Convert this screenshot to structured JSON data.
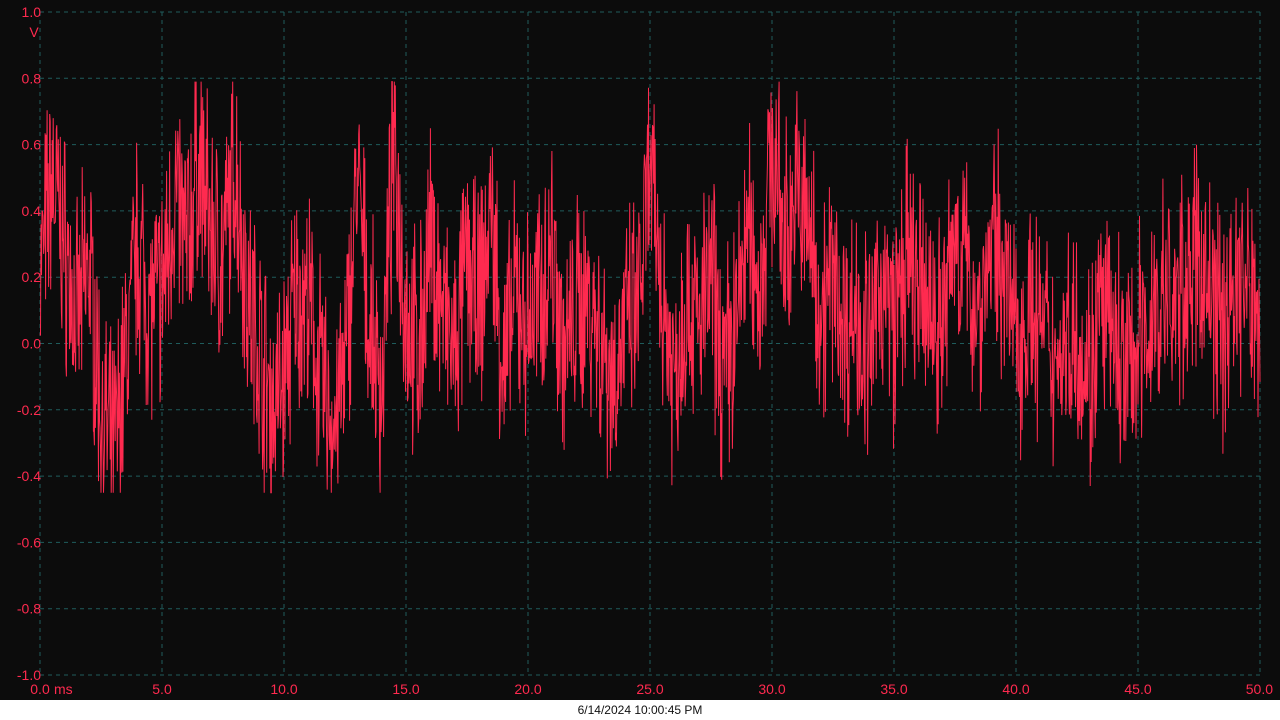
{
  "colors": {
    "background": "#0c0c0c",
    "grid": "#1f5c5c",
    "trace": "#ff2a4f",
    "axis_text": "#ff2a4f",
    "footer_bg": "#ffffff",
    "footer_text": "#111111"
  },
  "footer": {
    "timestamp": "6/14/2024 10:00:45 PM"
  },
  "chart_data": {
    "type": "line",
    "xlabel": "ms",
    "ylabel": "V",
    "xlim": [
      0,
      50
    ],
    "ylim": [
      -1,
      1
    ],
    "grid": true,
    "x_ticks": [
      "0.0",
      "5.0",
      "10.0",
      "15.0",
      "20.0",
      "25.0",
      "30.0",
      "35.0",
      "40.0",
      "45.0",
      "50.0"
    ],
    "y_ticks": [
      "1.0",
      "0.8",
      "0.6",
      "0.4",
      "0.2",
      "0.0",
      "-0.2",
      "-0.4",
      "-0.6",
      "-0.8",
      "-1.0"
    ],
    "series": [
      {
        "x": [
          0.0,
          0.5,
          1.0,
          1.5,
          2.0,
          2.5,
          3.0,
          3.5,
          4.0,
          4.5,
          5.0,
          5.5,
          6.0,
          6.5,
          7.0,
          7.5,
          8.0,
          8.5,
          9.0,
          9.5,
          10.0,
          10.5,
          11.0,
          11.5,
          12.0,
          12.5,
          13.0,
          13.5,
          14.0,
          14.5,
          15.0,
          15.5,
          16.0,
          16.5,
          17.0,
          17.5,
          18.0,
          18.5,
          19.0,
          19.5,
          20.0,
          20.5,
          21.0,
          21.5,
          22.0,
          22.5,
          23.0,
          23.5,
          24.0,
          24.5,
          25.0,
          25.5,
          26.0,
          26.5,
          27.0,
          27.5,
          28.0,
          28.5,
          29.0,
          29.5,
          30.0,
          30.5,
          31.0,
          31.5,
          32.0,
          32.5,
          33.0,
          33.5,
          34.0,
          34.5,
          35.0,
          35.5,
          36.0,
          36.5,
          37.0,
          37.5,
          38.0,
          38.5,
          39.0,
          39.5,
          40.0,
          40.5,
          41.0,
          41.5,
          42.0,
          42.5,
          43.0,
          43.5,
          44.0,
          44.5,
          45.0,
          45.5,
          46.0,
          46.5,
          47.0,
          47.5,
          48.0,
          48.5,
          49.0,
          49.5,
          50.0
        ],
        "y": [
          0.2,
          0.5,
          0.3,
          0.05,
          0.25,
          -0.2,
          -0.35,
          -0.05,
          0.3,
          0.1,
          0.15,
          0.45,
          0.3,
          0.55,
          0.35,
          0.25,
          0.55,
          0.15,
          0.0,
          -0.2,
          -0.1,
          0.15,
          0.1,
          -0.1,
          -0.25,
          -0.1,
          0.5,
          0.05,
          -0.15,
          0.6,
          0.1,
          -0.05,
          0.3,
          0.1,
          -0.05,
          0.25,
          0.1,
          0.4,
          -0.1,
          0.15,
          0.05,
          0.15,
          0.3,
          -0.05,
          0.1,
          0.15,
          0.0,
          -0.1,
          0.05,
          0.1,
          0.5,
          0.15,
          -0.1,
          0.15,
          0.05,
          0.2,
          -0.1,
          0.05,
          0.35,
          0.15,
          0.6,
          0.3,
          0.45,
          0.35,
          0.1,
          0.2,
          0.05,
          0.1,
          -0.05,
          0.2,
          0.05,
          0.25,
          0.15,
          0.1,
          0.05,
          0.35,
          0.2,
          0.1,
          0.3,
          0.25,
          0.0,
          0.1,
          0.05,
          -0.05,
          0.0,
          0.05,
          -0.1,
          0.1,
          0.0,
          -0.1,
          0.0,
          0.05,
          0.15,
          0.1,
          0.2,
          0.25,
          0.15,
          0.05,
          0.2,
          0.15,
          0.1
        ]
      }
    ]
  }
}
